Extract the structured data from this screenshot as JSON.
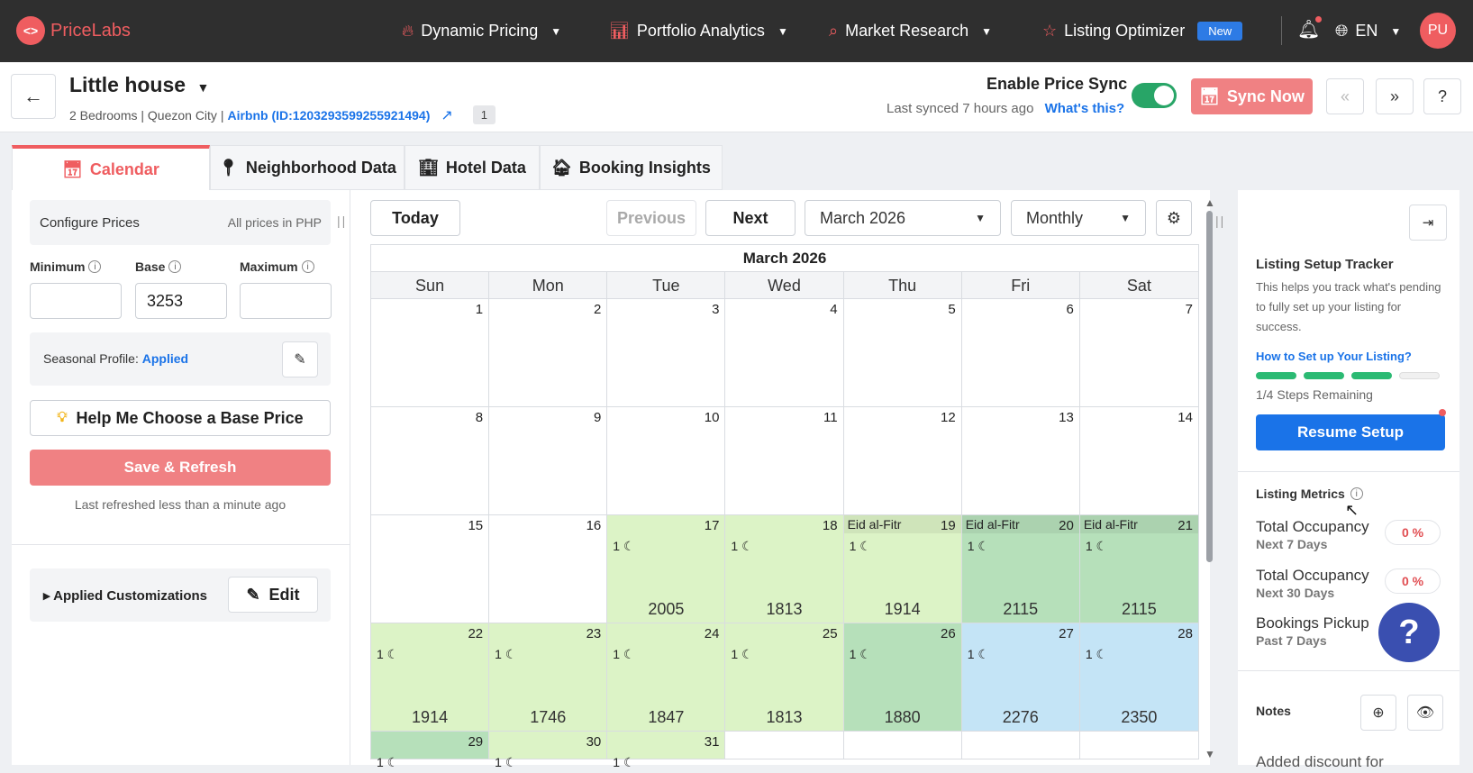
{
  "app": {
    "logo_mark": "<>",
    "name": "PriceLabs"
  },
  "nav": {
    "items": [
      {
        "label": "Dynamic Pricing",
        "icon": "flame-icon"
      },
      {
        "label": "Portfolio Analytics",
        "icon": "bar-chart-icon"
      },
      {
        "label": "Market Research",
        "icon": "analytics-search-icon"
      },
      {
        "label": "Listing Optimizer",
        "icon": "star-icon",
        "badge": "New"
      }
    ],
    "language": "EN",
    "avatar_initials": "PU"
  },
  "listing": {
    "title": "Little house",
    "details": "2 Bedrooms | Quezon City |",
    "channel_link": "Airbnb (ID:1203293599255921494)",
    "count": "1",
    "sync_label": "Enable Price Sync",
    "last_synced": "Last synced 7 hours ago",
    "whats_this": "What's this?",
    "sync_enabled": true,
    "sync_now": "Sync Now"
  },
  "tabs": [
    {
      "label": "Calendar",
      "icon": "calendar-icon",
      "active": true
    },
    {
      "label": "Neighborhood Data",
      "icon": "location-pin-icon"
    },
    {
      "label": "Hotel Data",
      "icon": "building-icon"
    },
    {
      "label": "Booking Insights",
      "icon": "chart-house-icon"
    }
  ],
  "configure": {
    "title": "Configure Prices",
    "currency_note": "All prices in PHP",
    "minimum_label": "Minimum",
    "base_label": "Base",
    "maximum_label": "Maximum",
    "minimum_value": "",
    "base_value": "3253",
    "maximum_value": "",
    "seasonal_label": "Seasonal Profile:",
    "seasonal_status": "Applied",
    "help_button": "Help Me Choose a Base Price",
    "save_button": "Save & Refresh",
    "last_refreshed": "Last refreshed less than a minute ago",
    "customizations_label": "Applied Customizations",
    "edit_button": "Edit"
  },
  "calendar_controls": {
    "today": "Today",
    "previous": "Previous",
    "next": "Next",
    "month_select": "March 2026",
    "view_select": "Monthly"
  },
  "calendar": {
    "month_title": "March 2026",
    "weekdays": [
      "Sun",
      "Mon",
      "Tue",
      "Wed",
      "Thu",
      "Fri",
      "Sat"
    ],
    "weeks": [
      [
        {
          "day": "1",
          "shade": ""
        },
        {
          "day": "2",
          "shade": ""
        },
        {
          "day": "3",
          "shade": ""
        },
        {
          "day": "4",
          "shade": ""
        },
        {
          "day": "5",
          "shade": ""
        },
        {
          "day": "6",
          "shade": ""
        },
        {
          "day": "7",
          "shade": ""
        }
      ],
      [
        {
          "day": "8",
          "shade": ""
        },
        {
          "day": "9",
          "shade": ""
        },
        {
          "day": "10",
          "shade": ""
        },
        {
          "day": "11",
          "shade": ""
        },
        {
          "day": "12",
          "shade": ""
        },
        {
          "day": "13",
          "shade": ""
        },
        {
          "day": "14",
          "shade": ""
        }
      ],
      [
        {
          "day": "15",
          "shade": ""
        },
        {
          "day": "16",
          "shade": ""
        },
        {
          "day": "17",
          "shade": "green",
          "min_stay": "1",
          "price": "2005"
        },
        {
          "day": "18",
          "shade": "green",
          "min_stay": "1",
          "price": "1813"
        },
        {
          "day": "19",
          "shade": "green",
          "holiday": "Eid al-Fitr",
          "min_stay": "1",
          "price": "1914"
        },
        {
          "day": "20",
          "shade": "dgreen",
          "holiday": "Eid al-Fitr",
          "min_stay": "1",
          "price": "2115"
        },
        {
          "day": "21",
          "shade": "dgreen",
          "holiday": "Eid al-Fitr",
          "min_stay": "1",
          "price": "2115"
        }
      ],
      [
        {
          "day": "22",
          "shade": "green",
          "min_stay": "1",
          "price": "1914"
        },
        {
          "day": "23",
          "shade": "green",
          "min_stay": "1",
          "price": "1746"
        },
        {
          "day": "24",
          "shade": "green",
          "min_stay": "1",
          "price": "1847"
        },
        {
          "day": "25",
          "shade": "green",
          "min_stay": "1",
          "price": "1813"
        },
        {
          "day": "26",
          "shade": "dgreen",
          "min_stay": "1",
          "price": "1880"
        },
        {
          "day": "27",
          "shade": "blue",
          "min_stay": "1",
          "price": "2276"
        },
        {
          "day": "28",
          "shade": "blue",
          "min_stay": "1",
          "price": "2350"
        }
      ],
      [
        {
          "day": "29",
          "shade": "dgreen",
          "min_stay": "1"
        },
        {
          "day": "30",
          "shade": "green",
          "min_stay": "1"
        },
        {
          "day": "31",
          "shade": "green",
          "min_stay": "1"
        },
        {
          "day": "",
          "shade": ""
        },
        {
          "day": "",
          "shade": ""
        },
        {
          "day": "",
          "shade": ""
        },
        {
          "day": "",
          "shade": ""
        }
      ]
    ]
  },
  "tracker": {
    "title": "Listing Setup Tracker",
    "description": "This helps you track what's pending to fully set up your listing for success.",
    "link": "How to Set up Your Listing?",
    "steps_done": 3,
    "steps_total": 4,
    "remaining": "1/4 Steps Remaining",
    "resume_button": "Resume Setup"
  },
  "metrics": {
    "title": "Listing Metrics",
    "items": [
      {
        "name": "Total Occupancy",
        "period": "Next 7 Days",
        "value": "0 %"
      },
      {
        "name": "Total Occupancy",
        "period": "Next 30 Days",
        "value": "0 %"
      },
      {
        "name": "Bookings Pickup",
        "period": "Past 7 Days",
        "value": ""
      }
    ]
  },
  "notes": {
    "title": "Notes",
    "preview": "Added discount for"
  },
  "help_float": "?"
}
